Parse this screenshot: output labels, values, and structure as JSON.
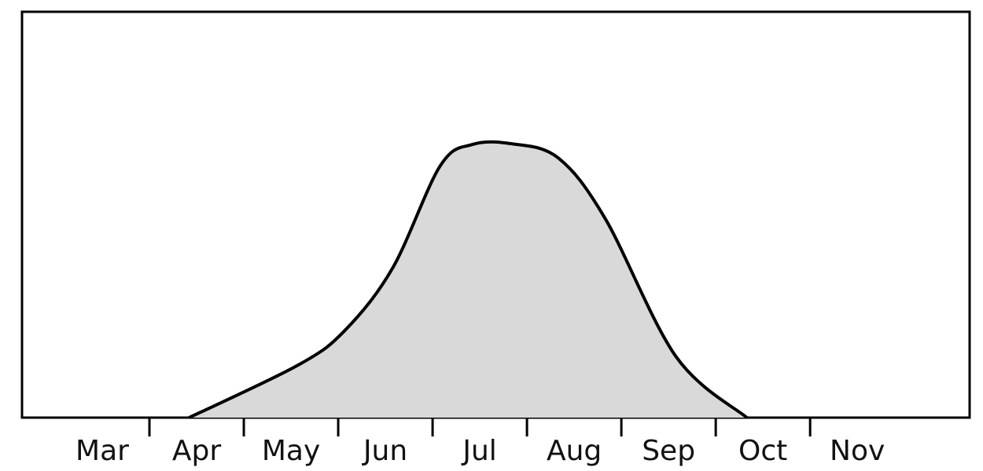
{
  "chart_data": {
    "type": "area",
    "categories": [
      "Mar",
      "Apr",
      "May",
      "Jun",
      "Jul",
      "Aug",
      "Sep",
      "Oct",
      "Nov"
    ],
    "x": [
      1.42,
      2.58,
      3.08,
      3.58,
      4.08,
      4.42,
      4.83,
      5.33,
      5.83,
      6.58,
      7.33
    ],
    "values": [
      0,
      13,
      21.7,
      37,
      62,
      67.3,
      67.5,
      64,
      49,
      15,
      0
    ],
    "xlim": [
      -0.35,
      9.69
    ],
    "ylim": [
      0,
      100
    ],
    "color": "#d9d9d9",
    "line_color": "#000000"
  }
}
